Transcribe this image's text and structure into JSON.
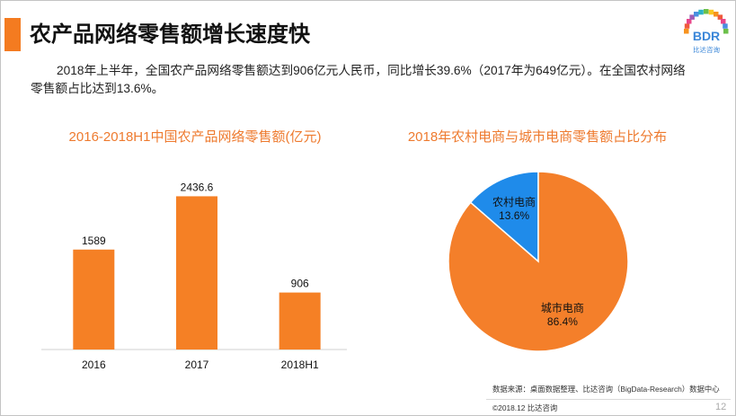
{
  "slide": {
    "title": "农产品网络零售额增长速度快",
    "summary": {
      "line1": "2018年上半年，全国农产品网络零售额达到906亿元人民币，同比增长39.6%（2017年为649亿元）。在全国农村网络",
      "line2": "零售额占比达到13.6%。"
    },
    "source": "数据来源：桌面数据整理、比达咨询（BigData-Research）数据中心",
    "copyright": "©2018.12 比达咨询",
    "page_number": "12"
  },
  "logo": {
    "text": "BDR",
    "tagline": "比达咨询"
  },
  "colors": {
    "accent": "#F47B20",
    "title_text": "#EE7A2E"
  },
  "chart_data": [
    {
      "type": "bar",
      "title": "2016-2018H1中国农产品网络零售额(亿元)",
      "categories": [
        "2016",
        "2017",
        "2018H1"
      ],
      "values": [
        1589,
        2436.6,
        906
      ],
      "data_labels": [
        "1589",
        "2436.6",
        "906"
      ],
      "xlabel": "",
      "ylabel": "",
      "ylim": [
        0,
        2800
      ],
      "grid": false,
      "legend": "none",
      "color": "#F58025"
    },
    {
      "type": "pie",
      "title": "2018年农村电商与城市电商零售额占比分布",
      "slices": [
        {
          "label": "农村电商",
          "value": 13.6,
          "value_label": "13.6%",
          "color": "#1F8BEA"
        },
        {
          "label": "城市电商",
          "value": 86.4,
          "value_label": "86.4%",
          "color": "#F47F2A"
        }
      ],
      "legend": "none"
    }
  ]
}
